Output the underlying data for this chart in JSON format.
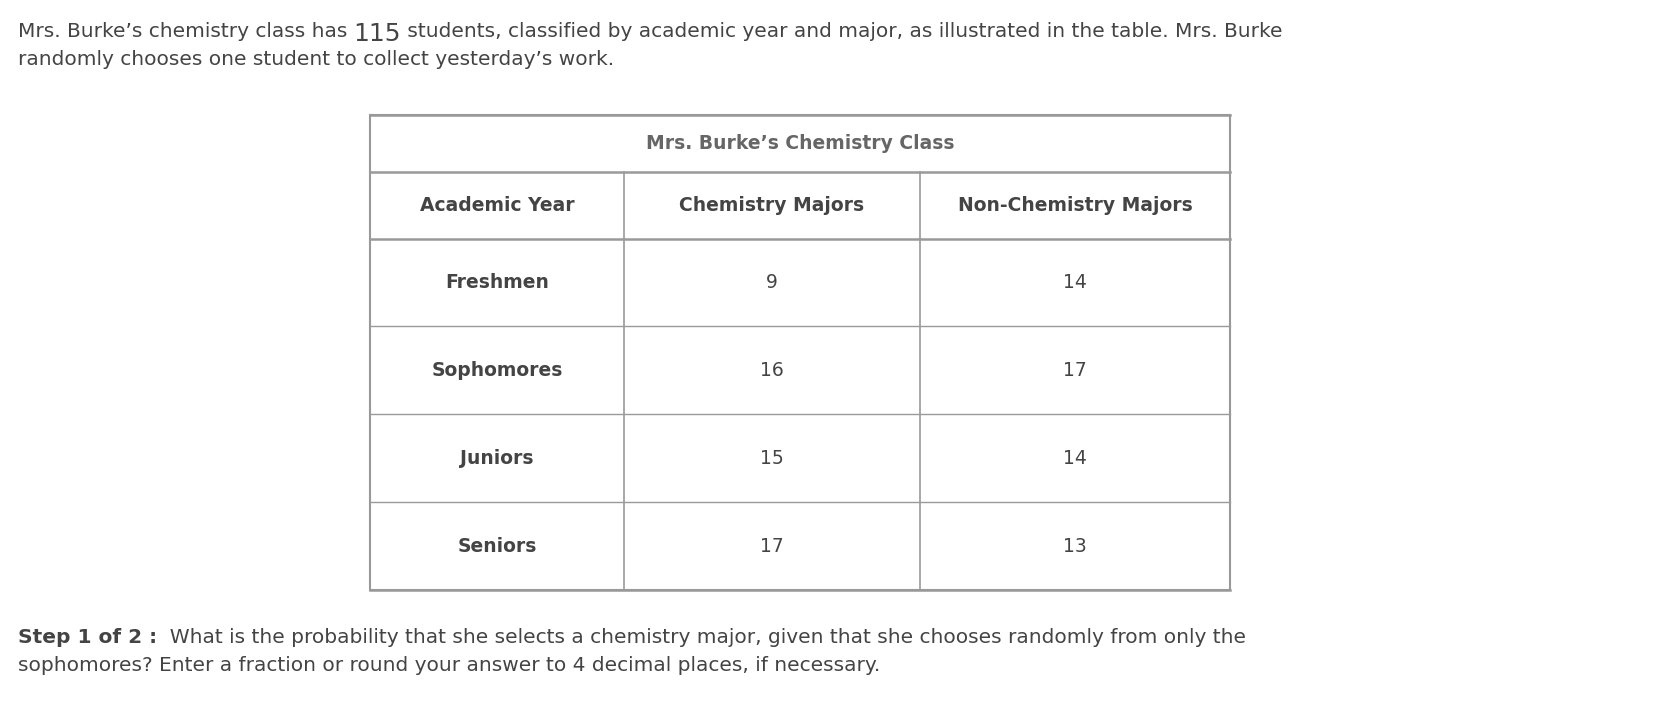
{
  "intro_prefix": "Mrs. Burke’s chemistry class has ",
  "intro_number": "115",
  "intro_suffix": " students, classified by academic year and major, as illustrated in the table. Mrs. Burke",
  "intro_line2": "randomly chooses one student to collect yesterday’s work.",
  "table_title": "Mrs. Burke’s Chemistry Class",
  "col_headers": [
    "Academic Year",
    "Chemistry Majors",
    "Non-Chemistry Majors"
  ],
  "rows": [
    [
      "Freshmen",
      "9",
      "14"
    ],
    [
      "Sophomores",
      "16",
      "17"
    ],
    [
      "Juniors",
      "15",
      "14"
    ],
    [
      "Seniors",
      "17",
      "13"
    ]
  ],
  "step_bold": "Step 1 of 2 :",
  "step_normal": "  What is the probability that she selects a chemistry major, given that she chooses randomly from only the",
  "step_line2": "sophomores? Enter a fraction or round your answer to 4 decimal places, if necessary.",
  "bg_color": "#ffffff",
  "text_color": "#444444",
  "border_color": "#999999",
  "intro_fontsize": 14.5,
  "number_fontsize": 18,
  "table_title_fontsize": 13.5,
  "col_header_fontsize": 13.5,
  "cell_fontsize": 13.5,
  "step_fontsize": 14.5,
  "fig_width": 16.64,
  "fig_height": 7.02,
  "dpi": 100
}
